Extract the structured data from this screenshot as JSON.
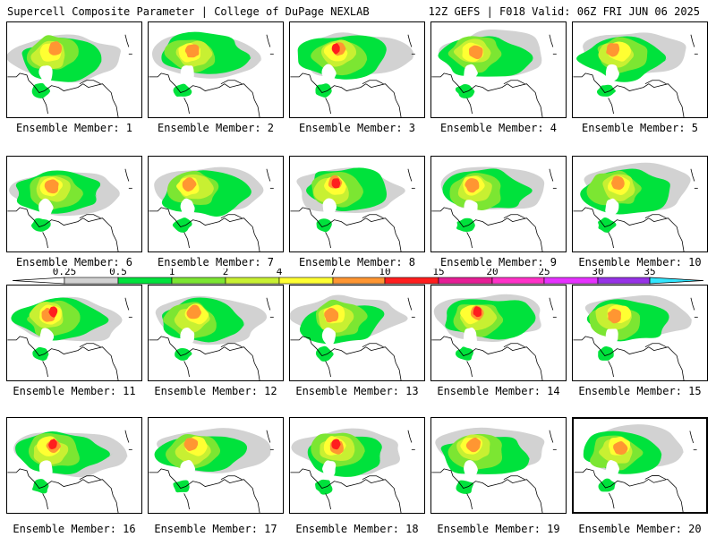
{
  "header": {
    "left": "Supercell Composite Parameter | College of DuPage NEXLAB",
    "right": "12Z GEFS | F018 Valid: 06Z FRI JUN 06 2025"
  },
  "colorbar": {
    "labels": [
      "0.25",
      "0.5",
      "1",
      "2",
      "4",
      "7",
      "10",
      "15",
      "20",
      "25",
      "30",
      "35"
    ],
    "colors": [
      "#d2d2d2",
      "#00e23c",
      "#7ce632",
      "#c8f032",
      "#ffff32",
      "#ff9632",
      "#ff1e1e",
      "#e61e96",
      "#ff32c8",
      "#e632ff",
      "#9632e6",
      "#b464e6",
      "#32e6ff"
    ]
  },
  "members": [
    {
      "label": "Ensemble Member: 1"
    },
    {
      "label": "Ensemble Member: 2"
    },
    {
      "label": "Ensemble Member: 3"
    },
    {
      "label": "Ensemble Member: 4"
    },
    {
      "label": "Ensemble Member: 5"
    },
    {
      "label": "Ensemble Member: 6"
    },
    {
      "label": "Ensemble Member: 7"
    },
    {
      "label": "Ensemble Member: 8"
    },
    {
      "label": "Ensemble Member: 9"
    },
    {
      "label": "Ensemble Member: 10"
    },
    {
      "label": "Ensemble Member: 11"
    },
    {
      "label": "Ensemble Member: 12"
    },
    {
      "label": "Ensemble Member: 13"
    },
    {
      "label": "Ensemble Member: 14"
    },
    {
      "label": "Ensemble Member: 15"
    },
    {
      "label": "Ensemble Member: 16"
    },
    {
      "label": "Ensemble Member: 17"
    },
    {
      "label": "Ensemble Member: 18"
    },
    {
      "label": "Ensemble Member: 19"
    },
    {
      "label": "Ensemble Member: 20"
    }
  ]
}
